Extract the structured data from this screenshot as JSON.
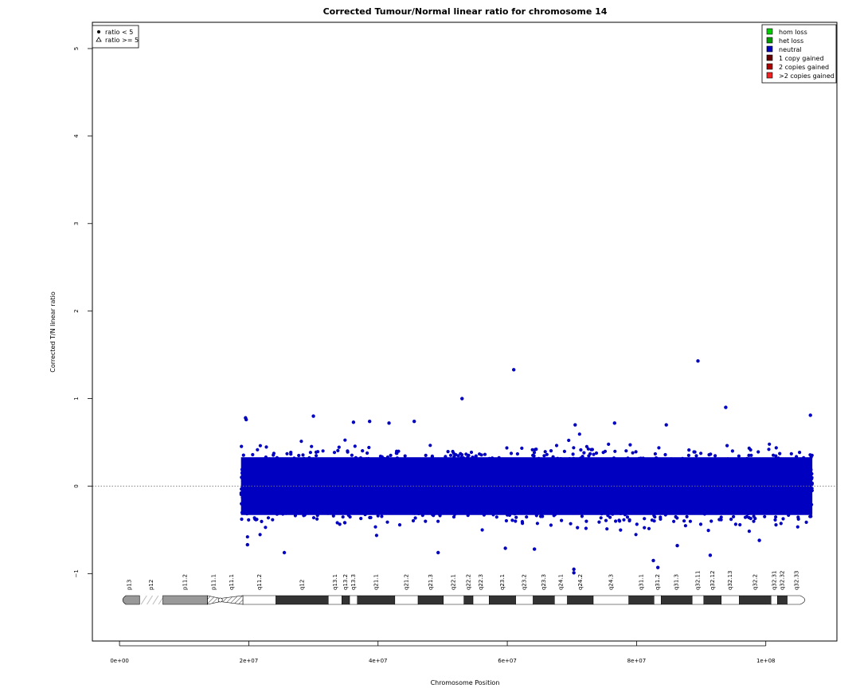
{
  "chart_data": {
    "type": "scatter",
    "title": "Corrected Tumour/Normal linear ratio for chromosome  14",
    "xlabel": "Chromosome Position",
    "ylabel": "Corrected T/N linear ratio",
    "xlim": [
      -4200000,
      111000000
    ],
    "ylim": [
      -1.77,
      5.3
    ],
    "x_ticks": [
      0,
      20000000,
      40000000,
      60000000,
      80000000,
      100000000
    ],
    "x_tick_labels": [
      "0e+00",
      "2e+07",
      "4e+07",
      "6e+07",
      "8e+07",
      "1e+08"
    ],
    "y_ticks": [
      -1,
      0,
      1,
      2,
      3,
      4,
      5
    ],
    "y_tick_labels": [
      "−1",
      "0",
      "1",
      "2",
      "3",
      "4",
      "5"
    ],
    "reference_line": 0,
    "data_range_x": [
      18800000,
      107200000
    ],
    "typical_spread": [
      -0.35,
      0.35
    ],
    "outliers": [
      {
        "x": 19500000,
        "y": 0.78
      },
      {
        "x": 19600000,
        "y": 0.76
      },
      {
        "x": 30000000,
        "y": 0.8
      },
      {
        "x": 36200000,
        "y": 0.73
      },
      {
        "x": 38700000,
        "y": 0.74
      },
      {
        "x": 41700000,
        "y": 0.72
      },
      {
        "x": 45600000,
        "y": 0.74
      },
      {
        "x": 53000000,
        "y": 1.0
      },
      {
        "x": 61000000,
        "y": 1.33
      },
      {
        "x": 70500000,
        "y": 0.7
      },
      {
        "x": 76600000,
        "y": 0.72
      },
      {
        "x": 84600000,
        "y": 0.7
      },
      {
        "x": 89500000,
        "y": 1.43
      },
      {
        "x": 93800000,
        "y": 0.9
      },
      {
        "x": 106900000,
        "y": 0.81
      },
      {
        "x": 19800000,
        "y": -0.67
      },
      {
        "x": 25500000,
        "y": -0.76
      },
      {
        "x": 49300000,
        "y": -0.76
      },
      {
        "x": 59700000,
        "y": -0.71
      },
      {
        "x": 64200000,
        "y": -0.72
      },
      {
        "x": 70300000,
        "y": -0.95
      },
      {
        "x": 70300000,
        "y": -0.99
      },
      {
        "x": 82600000,
        "y": -0.85
      },
      {
        "x": 83300000,
        "y": -0.93
      },
      {
        "x": 86300000,
        "y": -0.68
      },
      {
        "x": 91400000,
        "y": -0.79
      },
      {
        "x": 99000000,
        "y": -0.62
      }
    ],
    "point_legend": [
      "ratio < 5",
      "ratio >= 5"
    ],
    "legend": [
      {
        "label": "hom loss",
        "color": "#00cc00"
      },
      {
        "label": "het loss",
        "color": "#009900"
      },
      {
        "label": "neutral",
        "color": "#0000bb"
      },
      {
        "label": "1 copy gained",
        "color": "#660000"
      },
      {
        "label": "2 copies gained",
        "color": "#aa0000"
      },
      {
        "label": ">2 copies gained",
        "color": "#ee2222"
      }
    ],
    "point_color": "#0000c0",
    "ideogram": {
      "bands": [
        {
          "name": "p13",
          "start": 0,
          "end": 3100000,
          "stain": "gpos50"
        },
        {
          "name": "p12",
          "start": 3100000,
          "end": 6700000,
          "stain": "stalk"
        },
        {
          "name": "p11.2",
          "start": 6700000,
          "end": 13600000,
          "stain": "gpos50"
        },
        {
          "name": "p11.1",
          "start": 13600000,
          "end": 15600000,
          "stain": "acen-hatch"
        },
        {
          "name": "q11.1",
          "start": 15600000,
          "end": 19100000,
          "stain": "acen-hatch"
        },
        {
          "name": "q11.2",
          "start": 19100000,
          "end": 24200000,
          "stain": "gneg"
        },
        {
          "name": "q12",
          "start": 24200000,
          "end": 32300000,
          "stain": "gpos100"
        },
        {
          "name": "q13.1",
          "start": 32300000,
          "end": 34400000,
          "stain": "gneg"
        },
        {
          "name": "q13.2",
          "start": 34400000,
          "end": 35600000,
          "stain": "gpos100"
        },
        {
          "name": "q13.3",
          "start": 35600000,
          "end": 36800000,
          "stain": "gneg"
        },
        {
          "name": "q21.1",
          "start": 36800000,
          "end": 42600000,
          "stain": "gpos100"
        },
        {
          "name": "q21.2",
          "start": 42600000,
          "end": 46200000,
          "stain": "gneg"
        },
        {
          "name": "q21.3",
          "start": 46200000,
          "end": 50100000,
          "stain": "gpos100"
        },
        {
          "name": "q22.1",
          "start": 50100000,
          "end": 53300000,
          "stain": "gneg"
        },
        {
          "name": "q22.2",
          "start": 53300000,
          "end": 54700000,
          "stain": "gpos100"
        },
        {
          "name": "q22.3",
          "start": 54700000,
          "end": 57200000,
          "stain": "gneg"
        },
        {
          "name": "q23.1",
          "start": 57200000,
          "end": 61300000,
          "stain": "gpos100"
        },
        {
          "name": "q23.2",
          "start": 61300000,
          "end": 64000000,
          "stain": "gneg"
        },
        {
          "name": "q23.3",
          "start": 64000000,
          "end": 67300000,
          "stain": "gpos100"
        },
        {
          "name": "q24.1",
          "start": 67300000,
          "end": 69300000,
          "stain": "gneg"
        },
        {
          "name": "q24.2",
          "start": 69300000,
          "end": 73300000,
          "stain": "gpos100"
        },
        {
          "name": "q24.3",
          "start": 73300000,
          "end": 78800000,
          "stain": "gneg"
        },
        {
          "name": "q31.1",
          "start": 78800000,
          "end": 82700000,
          "stain": "gpos100"
        },
        {
          "name": "q31.2",
          "start": 82700000,
          "end": 83800000,
          "stain": "gneg"
        },
        {
          "name": "q31.3",
          "start": 83800000,
          "end": 88600000,
          "stain": "gpos100"
        },
        {
          "name": "q32.11",
          "start": 88600000,
          "end": 90400000,
          "stain": "gneg"
        },
        {
          "name": "q32.12",
          "start": 90400000,
          "end": 93100000,
          "stain": "gpos100"
        },
        {
          "name": "q32.13",
          "start": 93100000,
          "end": 95900000,
          "stain": "gneg"
        },
        {
          "name": "q32.2",
          "start": 95900000,
          "end": 100800000,
          "stain": "gpos100"
        },
        {
          "name": "q32.31",
          "start": 100800000,
          "end": 101800000,
          "stain": "gneg"
        },
        {
          "name": "q32.32",
          "start": 101800000,
          "end": 103300000,
          "stain": "gpos100"
        },
        {
          "name": "q32.33",
          "start": 103300000,
          "end": 106300000,
          "stain": "gneg"
        }
      ]
    }
  }
}
